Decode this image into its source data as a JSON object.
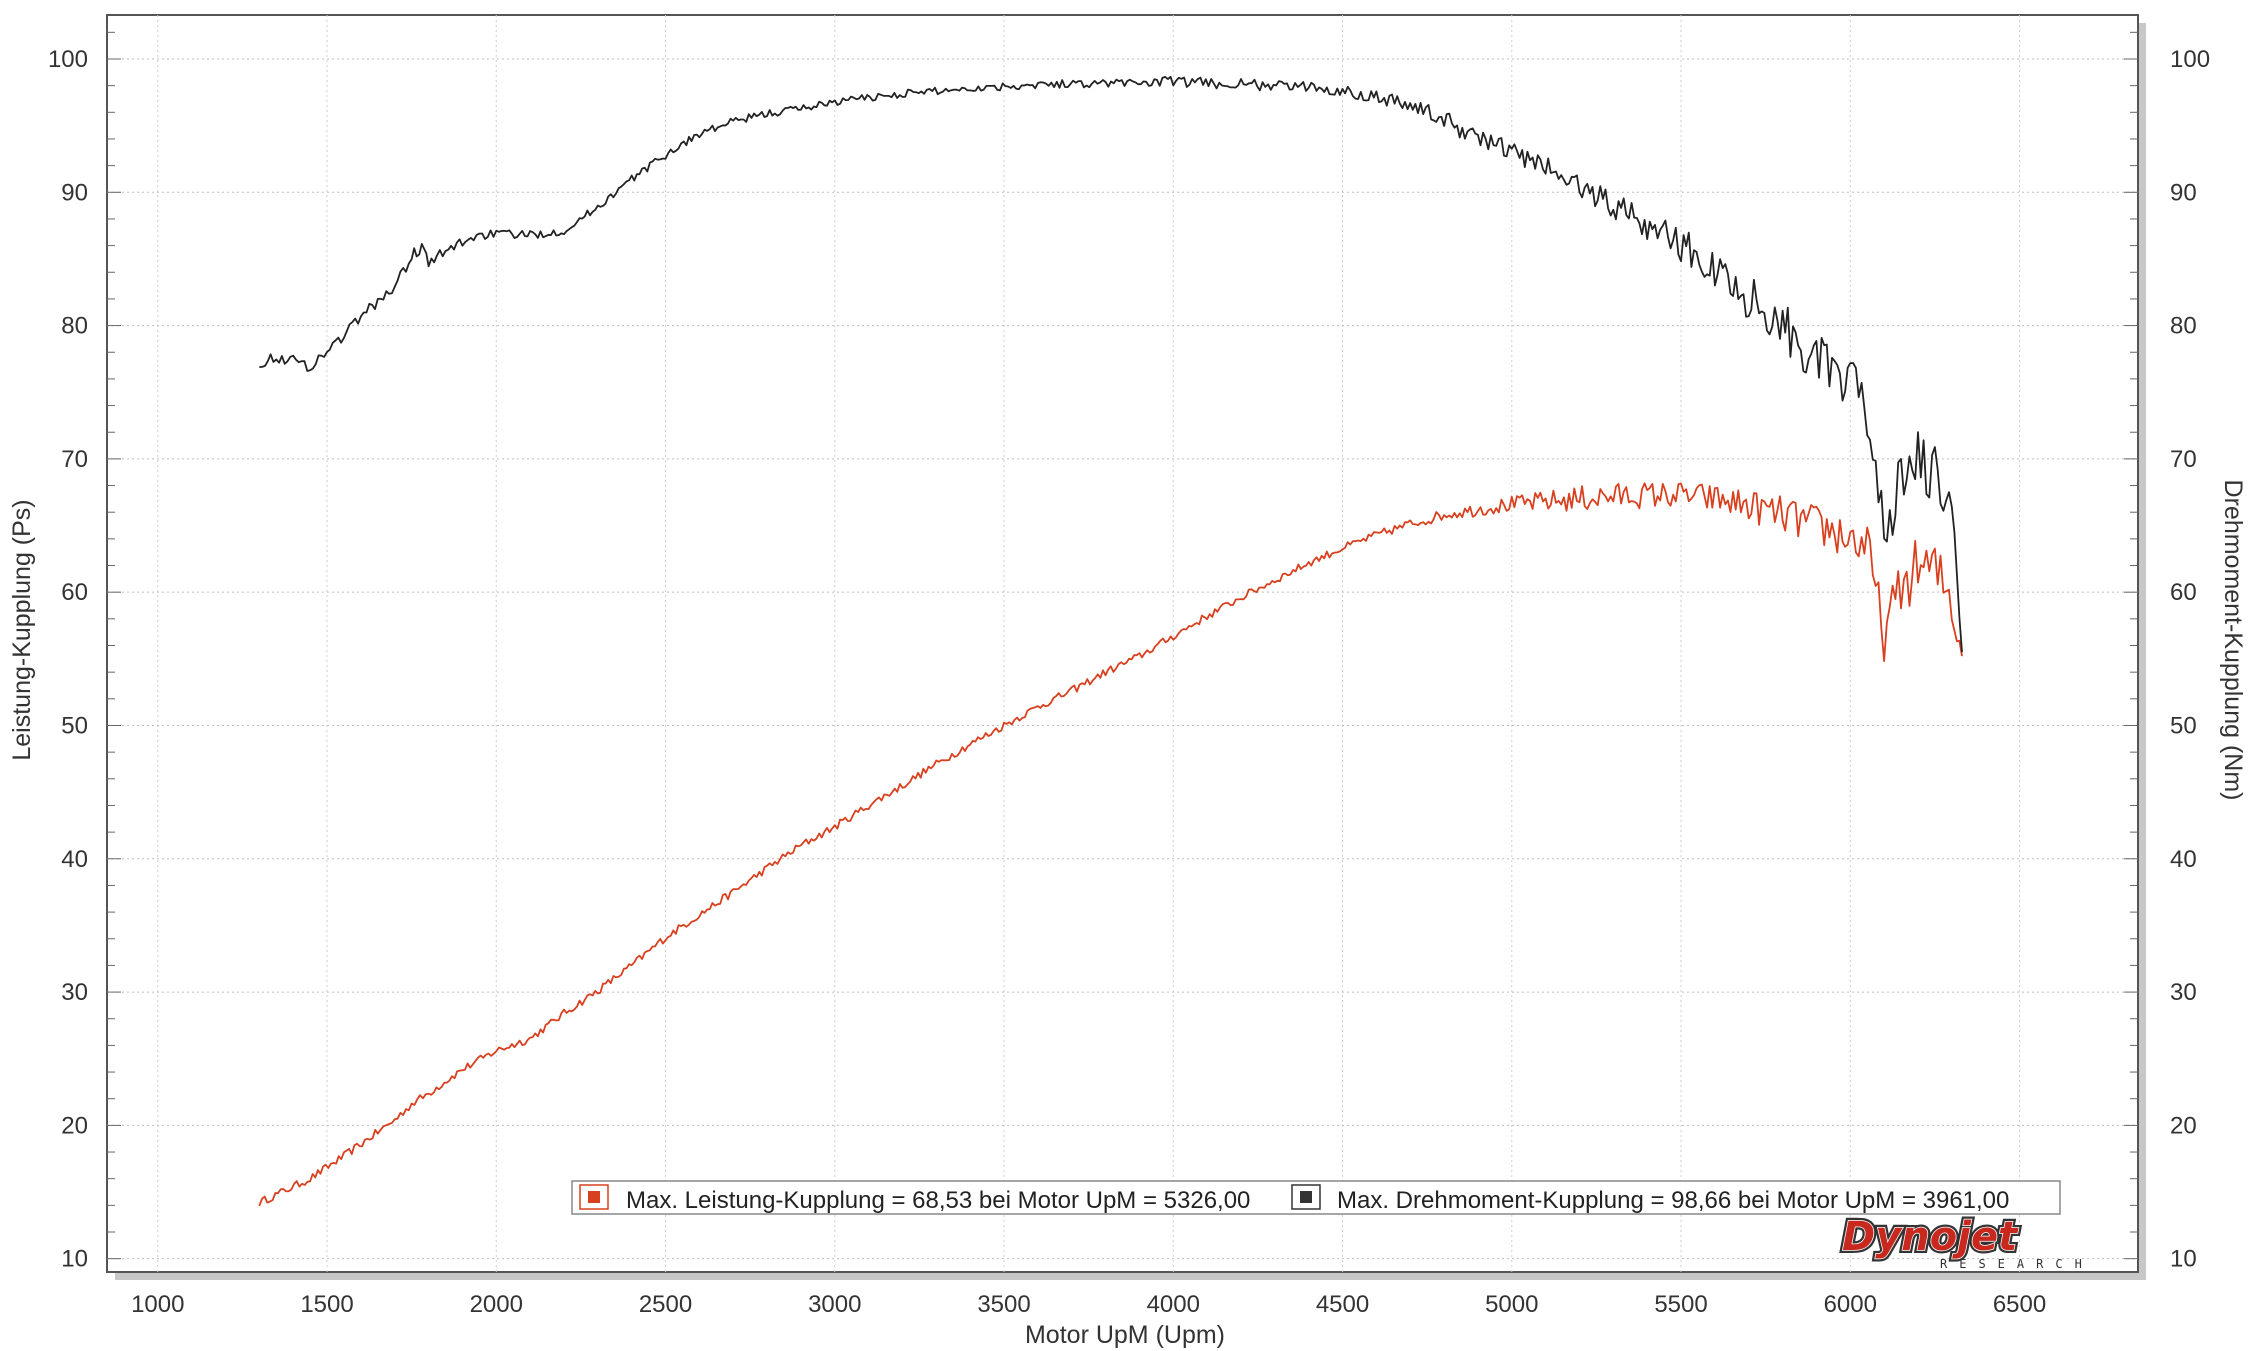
{
  "chart_data": {
    "type": "line",
    "xlabel": "Motor UpM (Upm)",
    "ylabel_left": "Leistung-Kupplung (Ps)",
    "ylabel_right": "Drehmoment-Kupplung (Nm)",
    "xlim": [
      850,
      6850
    ],
    "ylim_left": [
      9,
      103.3
    ],
    "ylim_right": [
      9,
      103.3
    ],
    "x_ticks": [
      1000,
      1500,
      2000,
      2500,
      3000,
      3500,
      4000,
      4500,
      5000,
      5500,
      6000,
      6500
    ],
    "y_ticks": [
      10,
      20,
      30,
      40,
      50,
      60,
      70,
      80,
      90,
      100
    ],
    "grid": true,
    "legend_position": "bottom-right",
    "series": [
      {
        "name": "Leistung-Kupplung",
        "axis": "left",
        "color": "#d8401f",
        "x": [
          1300,
          1450,
          1550,
          1650,
          1700,
          1750,
          1800,
          1900,
          2000,
          2100,
          2200,
          2300,
          2400,
          2500,
          2600,
          2700,
          2800,
          2900,
          3000,
          3100,
          3200,
          3300,
          3400,
          3500,
          3600,
          3700,
          3800,
          3900,
          4000,
          4100,
          4200,
          4300,
          4400,
          4500,
          4600,
          4700,
          4800,
          4900,
          5000,
          5100,
          5200,
          5300,
          5400,
          5500,
          5600,
          5700,
          5800,
          5900,
          6000,
          6050,
          6100,
          6150,
          6200,
          6250,
          6300,
          6330
        ],
        "y": [
          14.2,
          16.0,
          17.7,
          19.5,
          20.4,
          21.6,
          22.4,
          24.2,
          25.6,
          26.5,
          28.4,
          30.1,
          32.0,
          34.1,
          35.8,
          37.5,
          39.3,
          41.0,
          42.4,
          44.0,
          45.5,
          47.1,
          48.6,
          50.0,
          51.4,
          52.6,
          54.0,
          55.2,
          56.7,
          58.2,
          59.6,
          60.9,
          62.2,
          63.3,
          64.3,
          65.1,
          65.8,
          66.2,
          66.6,
          66.8,
          67.0,
          67.2,
          67.3,
          67.3,
          67.0,
          66.5,
          65.8,
          65.0,
          64.1,
          63.3,
          56.8,
          60.3,
          62.0,
          61.6,
          59.4,
          55.2
        ],
        "noise": [
          0.3,
          0.3,
          0.3,
          0.3,
          0.3,
          0.3,
          0.3,
          0.3,
          0.3,
          0.3,
          0.3,
          0.3,
          0.3,
          0.3,
          0.3,
          0.3,
          0.3,
          0.3,
          0.3,
          0.3,
          0.3,
          0.3,
          0.3,
          0.3,
          0.3,
          0.3,
          0.3,
          0.3,
          0.3,
          0.3,
          0.3,
          0.3,
          0.3,
          0.3,
          0.3,
          0.4,
          0.4,
          0.5,
          0.6,
          0.8,
          1.0,
          1.0,
          1.0,
          1.0,
          1.1,
          1.2,
          1.4,
          1.6,
          1.8,
          1.8,
          2.0,
          2.2,
          2.2,
          2.2,
          2.4,
          2.4
        ]
      },
      {
        "name": "Drehmoment-Kupplung",
        "axis": "right",
        "color": "#222222",
        "x": [
          1300,
          1350,
          1400,
          1450,
          1500,
          1550,
          1600,
          1650,
          1700,
          1750,
          1780,
          1800,
          1850,
          1900,
          1950,
          2000,
          2100,
          2200,
          2300,
          2400,
          2500,
          2600,
          2700,
          2800,
          2900,
          3000,
          3200,
          3400,
          3600,
          3800,
          4000,
          4200,
          4400,
          4500,
          4600,
          4700,
          4800,
          4900,
          5000,
          5100,
          5200,
          5300,
          5400,
          5500,
          5600,
          5700,
          5800,
          5900,
          6000,
          6050,
          6100,
          6150,
          6200,
          6250,
          6300,
          6330
        ],
        "y": [
          77.2,
          77.6,
          77.4,
          76.9,
          78.1,
          79.3,
          80.7,
          81.8,
          82.9,
          85.2,
          86.0,
          84.6,
          85.5,
          86.3,
          86.8,
          86.9,
          86.8,
          87.1,
          88.9,
          91.0,
          92.8,
          94.4,
          95.3,
          95.9,
          96.3,
          96.8,
          97.4,
          97.8,
          98.1,
          98.2,
          98.3,
          98.1,
          97.9,
          97.6,
          97.2,
          96.6,
          95.4,
          94.2,
          93.0,
          91.9,
          90.4,
          89.1,
          87.6,
          86.1,
          84.1,
          82.2,
          80.1,
          77.4,
          75.2,
          73.9,
          64.8,
          68.2,
          69.6,
          68.5,
          65.5,
          55.5
        ],
        "noise": [
          0.4,
          0.4,
          0.4,
          0.4,
          0.4,
          0.4,
          0.4,
          0.4,
          0.4,
          0.5,
          0.5,
          0.5,
          0.5,
          0.4,
          0.4,
          0.3,
          0.3,
          0.3,
          0.3,
          0.3,
          0.3,
          0.3,
          0.3,
          0.3,
          0.3,
          0.3,
          0.3,
          0.3,
          0.3,
          0.3,
          0.4,
          0.4,
          0.4,
          0.4,
          0.5,
          0.6,
          0.7,
          0.8,
          0.9,
          1.0,
          1.2,
          1.3,
          1.4,
          1.5,
          1.6,
          1.7,
          1.8,
          2.0,
          2.2,
          2.3,
          2.5,
          2.5,
          2.5,
          2.5,
          2.6,
          2.6
        ]
      }
    ],
    "legend": [
      {
        "swatch_color": "#d8401f",
        "text": "Max. Leistung-Kupplung = 68,53 bei Motor UpM = 5326,00"
      },
      {
        "swatch_color": "#333333",
        "text": "Max. Drehmoment-Kupplung = 98,66 bei Motor UpM = 3961,00"
      }
    ]
  },
  "logo": {
    "text": "Dynojet",
    "subtext": "RESEARCH",
    "color": "#c8281e"
  }
}
